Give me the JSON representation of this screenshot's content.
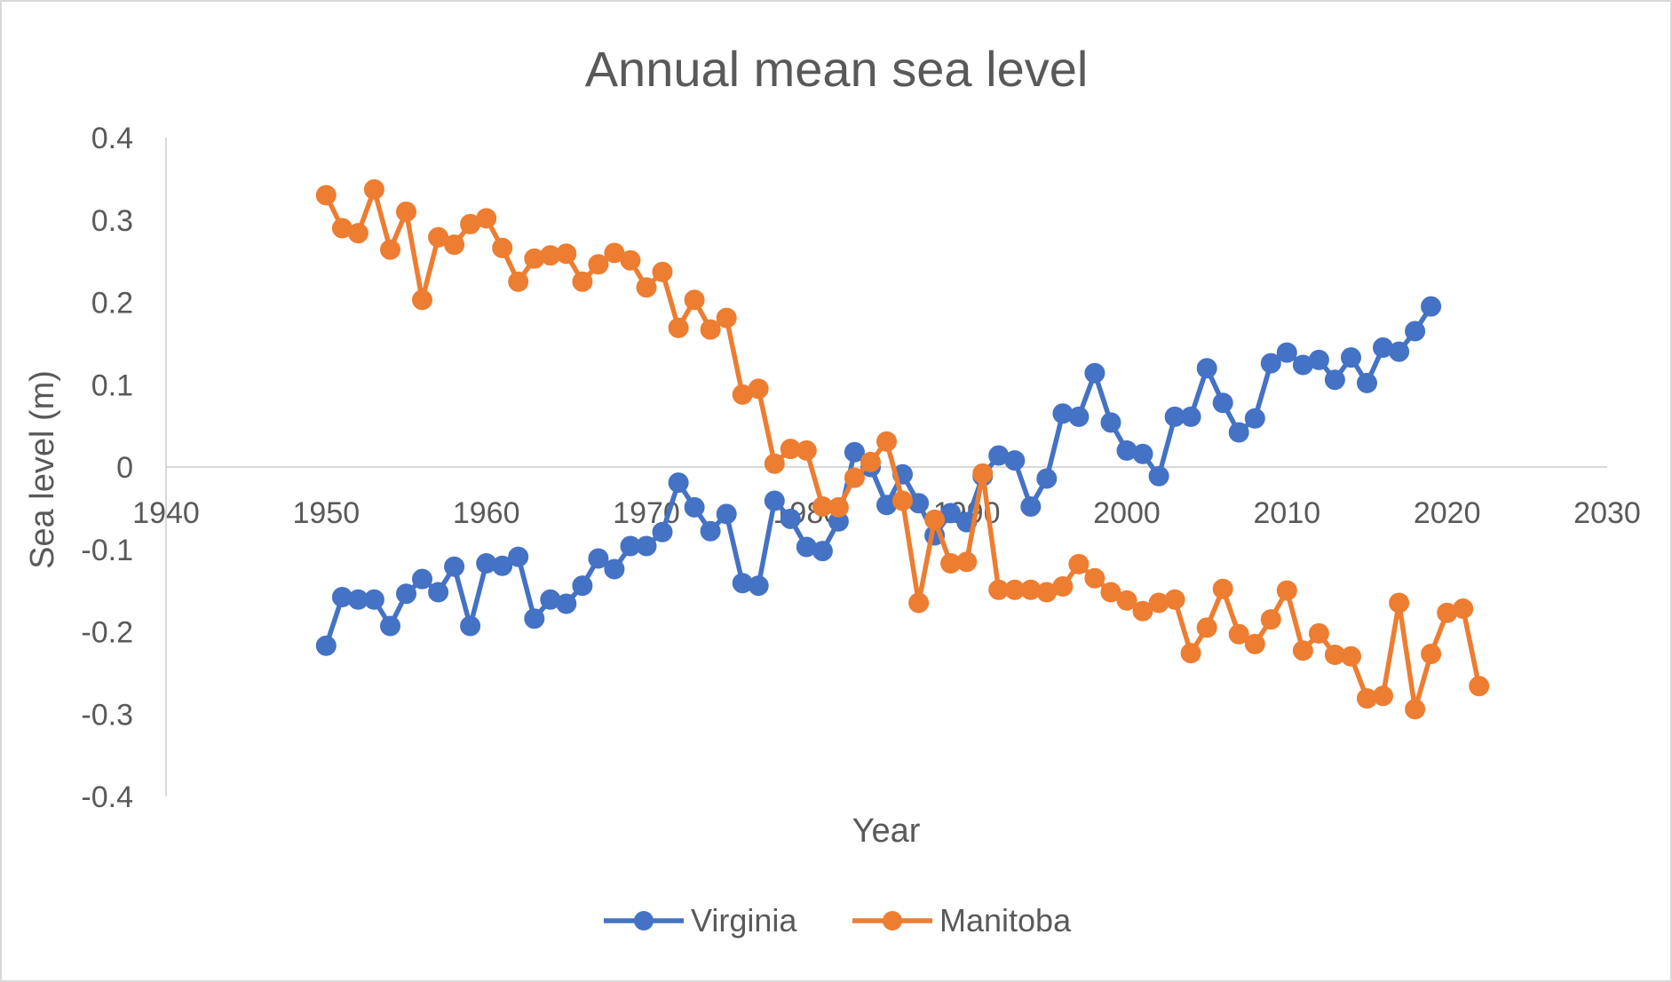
{
  "chart_data": {
    "type": "line",
    "title": "Annual mean sea level",
    "xlabel": "Year",
    "ylabel": "Sea level (m)",
    "xlim": [
      1940,
      2030
    ],
    "ylim": [
      -0.4,
      0.4
    ],
    "x_ticks": [
      "1940",
      "1950",
      "1960",
      "1970",
      "1980",
      "1990",
      "2000",
      "2010",
      "2020",
      "2030"
    ],
    "y_ticks": [
      "0.4",
      "0.3",
      "0.2",
      "0.1",
      "0",
      "-0.1",
      "-0.2",
      "-0.3",
      "-0.4"
    ],
    "grid": false,
    "legend_position": "bottom",
    "series": [
      {
        "name": "Virginia",
        "color": "#4472c4",
        "x": [
          1950,
          1951,
          1952,
          1953,
          1954,
          1955,
          1956,
          1957,
          1958,
          1959,
          1960,
          1961,
          1962,
          1963,
          1964,
          1965,
          1966,
          1967,
          1968,
          1969,
          1970,
          1971,
          1972,
          1973,
          1974,
          1975,
          1976,
          1977,
          1978,
          1979,
          1980,
          1981,
          1982,
          1983,
          1984,
          1985,
          1986,
          1987,
          1988,
          1989,
          1990,
          1991,
          1992,
          1993,
          1994,
          1995,
          1996,
          1997,
          1998,
          1999,
          2000,
          2001,
          2002,
          2003,
          2004,
          2005,
          2006,
          2007,
          2008,
          2009,
          2010,
          2011,
          2012,
          2013,
          2014,
          2015,
          2016,
          2017,
          2018,
          2019
        ],
        "y": [
          -0.217,
          -0.158,
          -0.161,
          -0.161,
          -0.193,
          -0.154,
          -0.136,
          -0.152,
          -0.121,
          -0.193,
          -0.117,
          -0.12,
          -0.109,
          -0.184,
          -0.161,
          -0.166,
          -0.144,
          -0.111,
          -0.124,
          -0.096,
          -0.096,
          -0.079,
          -0.019,
          -0.049,
          -0.078,
          -0.057,
          -0.141,
          -0.144,
          -0.041,
          -0.063,
          -0.097,
          -0.102,
          -0.066,
          0.018,
          0.0,
          -0.046,
          -0.009,
          -0.044,
          -0.083,
          -0.056,
          -0.067,
          -0.011,
          0.014,
          0.008,
          -0.048,
          -0.014,
          0.065,
          0.061,
          0.114,
          0.054,
          0.02,
          0.016,
          -0.011,
          0.061,
          0.061,
          0.12,
          0.078,
          0.042,
          0.059,
          0.126,
          0.139,
          0.124,
          0.13,
          0.106,
          0.133,
          0.102,
          0.145,
          0.14,
          0.165,
          0.195
        ]
      },
      {
        "name": "Manitoba",
        "color": "#ed7d31",
        "x": [
          1950,
          1951,
          1952,
          1953,
          1954,
          1955,
          1956,
          1957,
          1958,
          1959,
          1960,
          1961,
          1962,
          1963,
          1964,
          1965,
          1966,
          1967,
          1968,
          1969,
          1970,
          1971,
          1972,
          1973,
          1974,
          1975,
          1976,
          1977,
          1978,
          1979,
          1980,
          1981,
          1982,
          1983,
          1984,
          1985,
          1986,
          1987,
          1988,
          1989,
          1990,
          1991,
          1992,
          1993,
          1994,
          1995,
          1996,
          1997,
          1998,
          1999,
          2000,
          2001,
          2002,
          2003,
          2004,
          2005,
          2006,
          2007,
          2008,
          2009,
          2010,
          2011,
          2012,
          2013,
          2014,
          2015,
          2016,
          2017,
          2018,
          2019,
          2020,
          2021,
          2022
        ],
        "y": [
          0.33,
          0.29,
          0.284,
          0.337,
          0.264,
          0.31,
          0.203,
          0.279,
          0.27,
          0.295,
          0.302,
          0.266,
          0.225,
          0.253,
          0.257,
          0.259,
          0.225,
          0.246,
          0.26,
          0.251,
          0.218,
          0.237,
          0.169,
          0.203,
          0.167,
          0.181,
          0.088,
          0.095,
          0.004,
          0.022,
          0.02,
          -0.048,
          -0.049,
          -0.013,
          0.006,
          0.031,
          -0.041,
          -0.165,
          -0.064,
          -0.117,
          -0.115,
          -0.008,
          -0.149,
          -0.149,
          -0.149,
          -0.152,
          -0.145,
          -0.118,
          -0.135,
          -0.152,
          -0.162,
          -0.175,
          -0.165,
          -0.161,
          -0.226,
          -0.195,
          -0.148,
          -0.203,
          -0.215,
          -0.185,
          -0.15,
          -0.223,
          -0.202,
          -0.228,
          -0.23,
          -0.281,
          -0.278,
          -0.165,
          -0.294,
          -0.227,
          -0.177,
          -0.172,
          -0.266
        ]
      }
    ]
  }
}
